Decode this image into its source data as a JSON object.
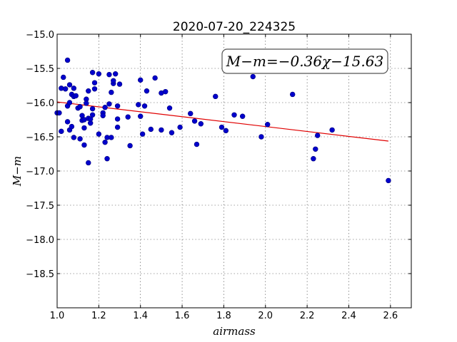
{
  "chart_data": {
    "type": "scatter",
    "title": "2020-07-20_224325",
    "xlabel": "airmass",
    "ylabel": "M−m",
    "xlim": [
      1.0,
      2.7
    ],
    "ylim": [
      -15.0,
      -19.0
    ],
    "x_ticks": [
      1.0,
      1.2,
      1.4,
      1.6,
      1.8,
      2.0,
      2.2,
      2.4,
      2.6
    ],
    "x_tick_labels": [
      "1.0",
      "1.2",
      "1.4",
      "1.6",
      "1.8",
      "2.0",
      "2.2",
      "2.4",
      "2.6"
    ],
    "y_ticks": [
      -15.0,
      -15.5,
      -16.0,
      -16.5,
      -17.0,
      -17.5,
      -18.0,
      -18.5
    ],
    "y_tick_labels": [
      "−15.0",
      "−15.5",
      "−16.0",
      "−16.5",
      "−17.0",
      "−17.5",
      "−18.0",
      "−18.5"
    ],
    "grid": true,
    "annotation": "M−m=−0.36χ−15.63",
    "annotation_position": "top-right",
    "fit": {
      "slope": -0.36,
      "intercept": -15.63,
      "x_range": [
        1.0,
        2.59
      ],
      "color": "#e00000"
    },
    "point_color": "#0000cc",
    "points": [
      [
        1.0,
        -16.15
      ],
      [
        1.01,
        -16.15
      ],
      [
        1.02,
        -15.79
      ],
      [
        1.02,
        -16.42
      ],
      [
        1.03,
        -15.63
      ],
      [
        1.04,
        -15.8
      ],
      [
        1.05,
        -15.38
      ],
      [
        1.05,
        -16.05
      ],
      [
        1.05,
        -16.28
      ],
      [
        1.06,
        -15.74
      ],
      [
        1.06,
        -16.0
      ],
      [
        1.06,
        -16.4
      ],
      [
        1.07,
        -15.88
      ],
      [
        1.07,
        -16.35
      ],
      [
        1.08,
        -15.79
      ],
      [
        1.08,
        -15.91
      ],
      [
        1.08,
        -16.51
      ],
      [
        1.09,
        -15.9
      ],
      [
        1.1,
        -16.08
      ],
      [
        1.11,
        -16.06
      ],
      [
        1.11,
        -16.53
      ],
      [
        1.12,
        -16.19
      ],
      [
        1.12,
        -16.26
      ],
      [
        1.13,
        -16.25
      ],
      [
        1.13,
        -16.62
      ],
      [
        1.13,
        -16.37
      ],
      [
        1.14,
        -15.95
      ],
      [
        1.14,
        -16.01
      ],
      [
        1.15,
        -15.83
      ],
      [
        1.15,
        -16.23
      ],
      [
        1.15,
        -16.88
      ],
      [
        1.16,
        -16.3
      ],
      [
        1.16,
        -16.24
      ],
      [
        1.17,
        -16.09
      ],
      [
        1.17,
        -16.18
      ],
      [
        1.17,
        -15.56
      ],
      [
        1.18,
        -15.71
      ],
      [
        1.18,
        -15.8
      ],
      [
        1.2,
        -15.58
      ],
      [
        1.2,
        -16.46
      ],
      [
        1.22,
        -16.15
      ],
      [
        1.22,
        -16.19
      ],
      [
        1.23,
        -16.07
      ],
      [
        1.23,
        -16.58
      ],
      [
        1.24,
        -16.51
      ],
      [
        1.24,
        -16.82
      ],
      [
        1.25,
        -16.02
      ],
      [
        1.25,
        -15.59
      ],
      [
        1.26,
        -15.85
      ],
      [
        1.26,
        -16.51
      ],
      [
        1.27,
        -15.72
      ],
      [
        1.27,
        -15.68
      ],
      [
        1.28,
        -15.58
      ],
      [
        1.29,
        -16.24
      ],
      [
        1.29,
        -16.36
      ],
      [
        1.29,
        -16.05
      ],
      [
        1.3,
        -15.73
      ],
      [
        1.34,
        -16.21
      ],
      [
        1.35,
        -16.63
      ],
      [
        1.39,
        -16.03
      ],
      [
        1.4,
        -16.2
      ],
      [
        1.4,
        -15.67
      ],
      [
        1.41,
        -16.46
      ],
      [
        1.42,
        -16.05
      ],
      [
        1.43,
        -15.83
      ],
      [
        1.45,
        -16.39
      ],
      [
        1.47,
        -15.64
      ],
      [
        1.5,
        -15.86
      ],
      [
        1.5,
        -16.4
      ],
      [
        1.52,
        -15.84
      ],
      [
        1.54,
        -16.08
      ],
      [
        1.55,
        -16.44
      ],
      [
        1.59,
        -16.36
      ],
      [
        1.64,
        -16.16
      ],
      [
        1.66,
        -16.27
      ],
      [
        1.67,
        -16.61
      ],
      [
        1.69,
        -16.31
      ],
      [
        1.76,
        -15.91
      ],
      [
        1.79,
        -16.36
      ],
      [
        1.81,
        -16.41
      ],
      [
        1.85,
        -16.18
      ],
      [
        1.89,
        -16.2
      ],
      [
        1.94,
        -15.62
      ],
      [
        1.98,
        -16.5
      ],
      [
        2.01,
        -16.32
      ],
      [
        2.13,
        -15.88
      ],
      [
        2.23,
        -16.82
      ],
      [
        2.24,
        -16.68
      ],
      [
        2.25,
        -16.48
      ],
      [
        2.32,
        -16.4
      ],
      [
        2.59,
        -17.14
      ]
    ]
  }
}
